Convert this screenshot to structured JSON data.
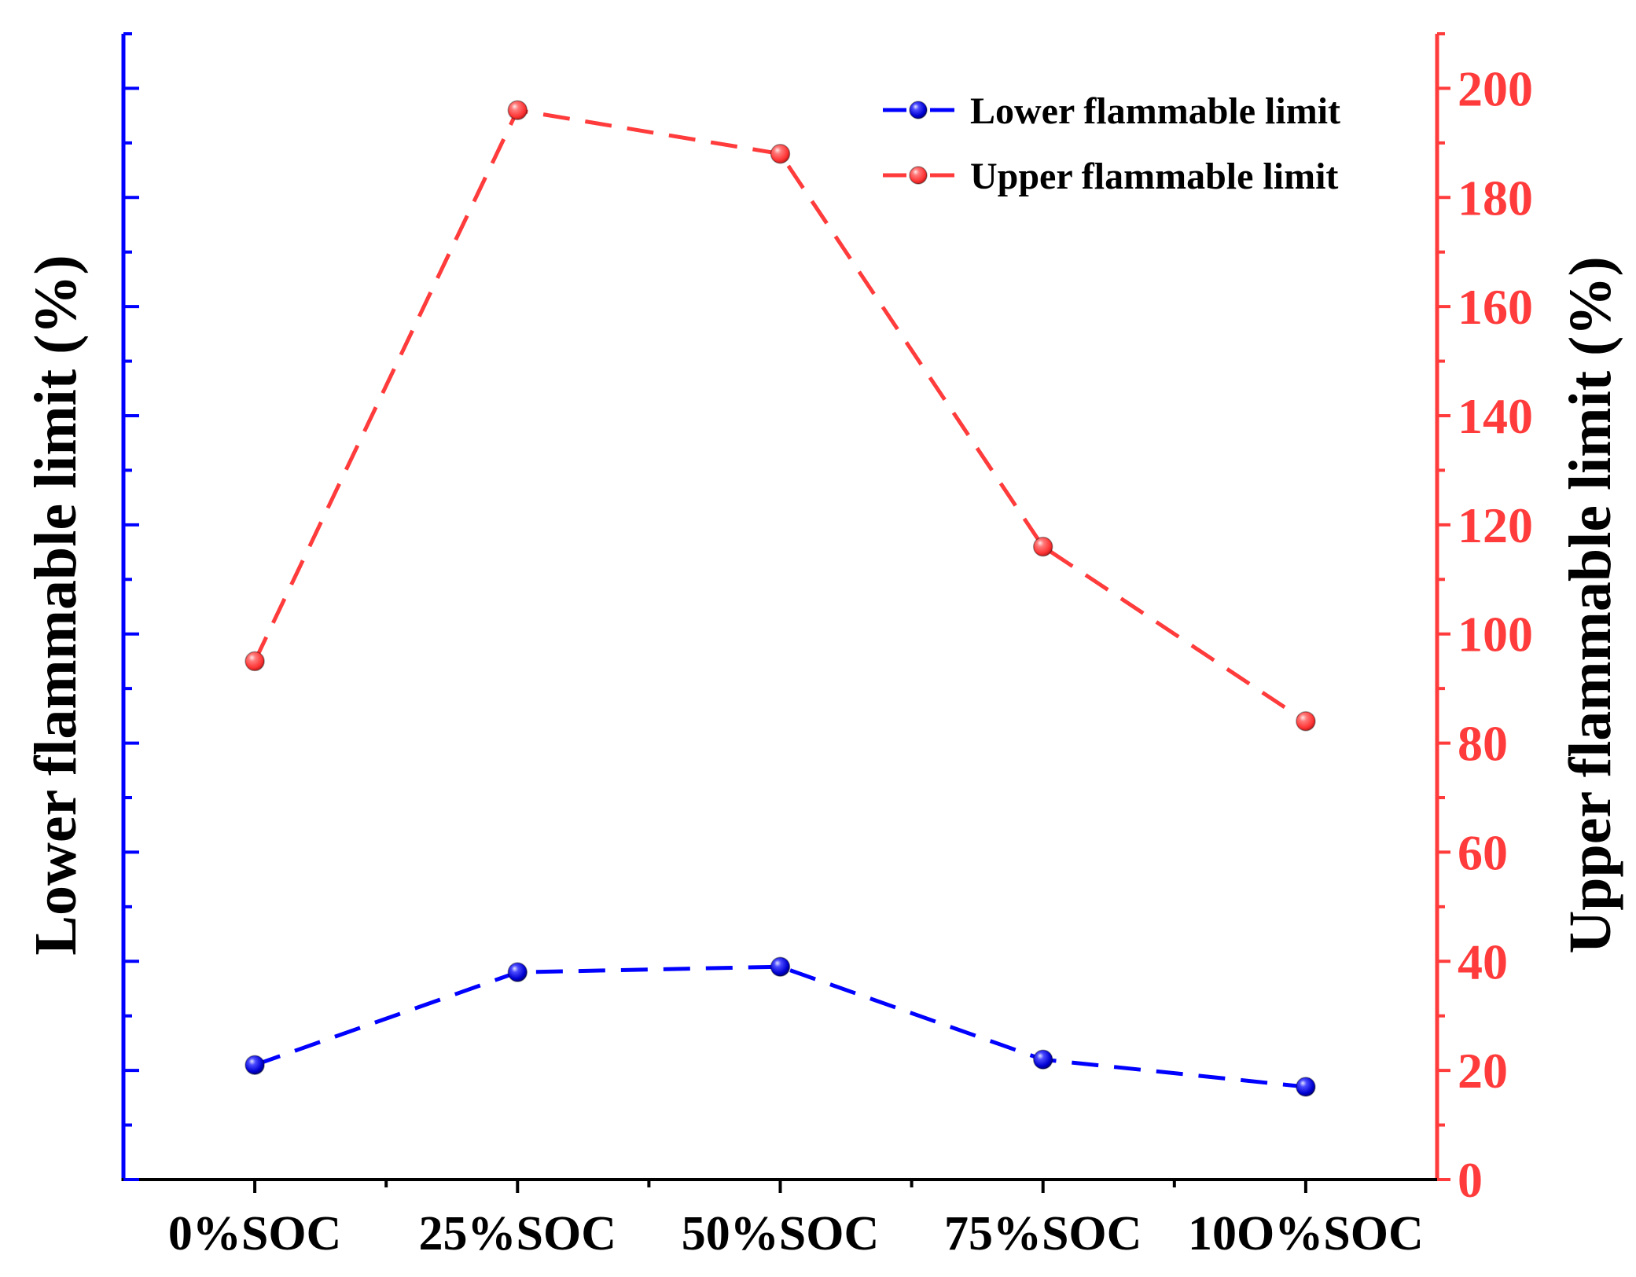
{
  "chart_data": {
    "type": "line",
    "categories": [
      "0%SOC",
      "25%SOC",
      "50%SOC",
      "75%SOC",
      "10O%SOC"
    ],
    "series": [
      {
        "name": "Lower flammable limit",
        "axis": "left",
        "color": "#0000FF",
        "line_style": "dashed",
        "marker": "sphere",
        "values": [
          21,
          38,
          39,
          22,
          17
        ]
      },
      {
        "name": "Upper flammable limit",
        "axis": "right",
        "color": "#FF3B3B",
        "line_style": "dashed",
        "marker": "sphere",
        "values": [
          95,
          196,
          188,
          116,
          84
        ]
      }
    ],
    "y_left": {
      "label": "Lower flammable limit (%)",
      "lim": [
        0,
        210
      ],
      "color": "#0000FF"
    },
    "y_right": {
      "label": "Upper flammable limit (%)",
      "lim": [
        0,
        210
      ],
      "ticks": [
        0,
        20,
        40,
        60,
        80,
        100,
        120,
        140,
        160,
        180,
        200
      ],
      "color": "#FF3B3B"
    },
    "x_axis": {
      "color": "#000000"
    },
    "legend": "top-right",
    "grid": false
  }
}
